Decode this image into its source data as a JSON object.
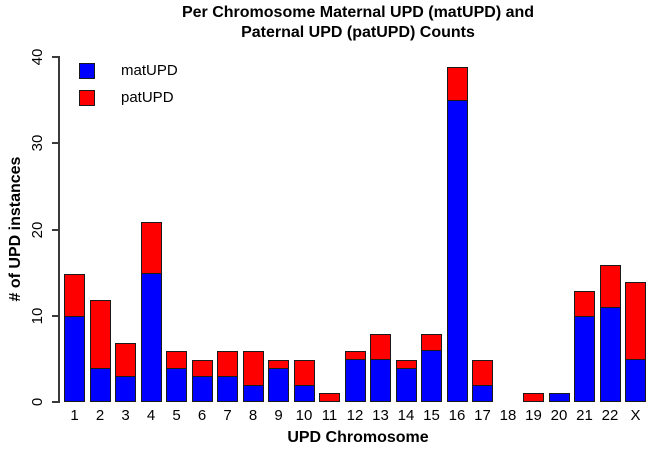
{
  "title": {
    "line1": "Per Chromosome Maternal UPD (matUPD) and",
    "line2": "Paternal UPD (patUPD) Counts"
  },
  "legend": {
    "items": [
      {
        "label": "matUPD",
        "color": "#0000FF"
      },
      {
        "label": "patUPD",
        "color": "#FF0000"
      }
    ]
  },
  "axes": {
    "y_title": "# of UPD instances",
    "x_title": "UPD Chromosome",
    "y_ticks": [
      0,
      10,
      20,
      30,
      40
    ]
  },
  "colors": {
    "matUPD": "#0000FF",
    "patUPD": "#FF0000",
    "axis": "#3a3a3a",
    "bar_border": "#1a1a1a",
    "background": "#ffffff"
  },
  "chart_data": {
    "type": "bar",
    "stacked": true,
    "title": "Per Chromosome Maternal UPD (matUPD) and Paternal UPD (patUPD) Counts",
    "xlabel": "UPD Chromosome",
    "ylabel": "# of UPD instances",
    "ylim": [
      0,
      40
    ],
    "grid": false,
    "legend_position": "top-left",
    "categories": [
      "1",
      "2",
      "3",
      "4",
      "5",
      "6",
      "7",
      "8",
      "9",
      "10",
      "11",
      "12",
      "13",
      "14",
      "15",
      "16",
      "17",
      "18",
      "19",
      "20",
      "21",
      "22",
      "X"
    ],
    "series": [
      {
        "name": "matUPD",
        "color": "#0000FF",
        "values": [
          10,
          4,
          3,
          15,
          4,
          3,
          3,
          2,
          4,
          2,
          0,
          5,
          5,
          4,
          6,
          35,
          2,
          0,
          0,
          1,
          10,
          11,
          5
        ]
      },
      {
        "name": "patUPD",
        "color": "#FF0000",
        "values": [
          5,
          8,
          4,
          6,
          2,
          2,
          3,
          4,
          1,
          3,
          1,
          1,
          3,
          1,
          2,
          4,
          3,
          0,
          1,
          0,
          3,
          5,
          9
        ]
      }
    ],
    "totals": [
      15,
      12,
      7,
      21,
      6,
      5,
      6,
      6,
      5,
      5,
      1,
      6,
      8,
      5,
      8,
      39,
      5,
      0,
      1,
      1,
      13,
      16,
      14
    ]
  }
}
